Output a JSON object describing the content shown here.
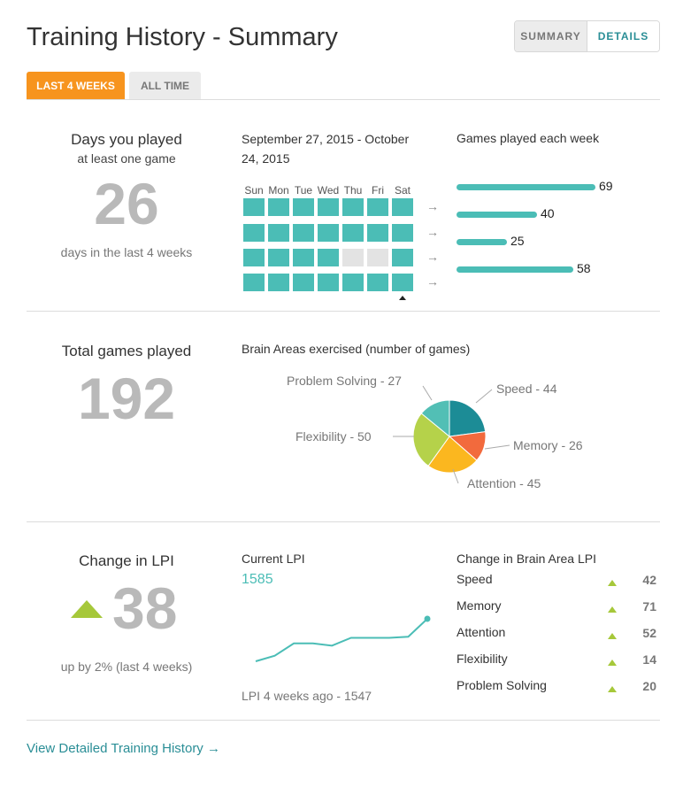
{
  "header": {
    "title": "Training History - Summary",
    "view_toggle": {
      "summary": "SUMMARY",
      "details": "DETAILS"
    }
  },
  "period_tabs": [
    "LAST 4 WEEKS",
    "ALL TIME"
  ],
  "days_played": {
    "heading": "Days you played",
    "subheading": "at least one game",
    "value": "26",
    "caption": "days in the last 4 weeks"
  },
  "calendar": {
    "date_range": "September 27, 2015 - October 24, 2015",
    "date_range_line1": "September 27, 2015 - October",
    "date_range_line2": "24, 2015",
    "day_labels": [
      "Sun",
      "Mon",
      "Tue",
      "Wed",
      "Thu",
      "Fri",
      "Sat"
    ],
    "weeks": [
      [
        1,
        1,
        1,
        1,
        1,
        1,
        1
      ],
      [
        1,
        1,
        1,
        1,
        1,
        1,
        1
      ],
      [
        1,
        1,
        1,
        1,
        0,
        0,
        1
      ],
      [
        1,
        1,
        1,
        1,
        1,
        1,
        1
      ]
    ],
    "arrow_glyph": "→"
  },
  "games_per_week": {
    "heading": "Games played each week",
    "values": [
      69,
      40,
      25,
      58
    ],
    "labels": [
      "69",
      "40",
      "25",
      "58"
    ]
  },
  "total_games": {
    "heading": "Total games played",
    "value": "192"
  },
  "brain_areas": {
    "heading": "Brain Areas exercised (number of games)",
    "slices": [
      {
        "name": "Speed",
        "value": 44,
        "label": "Speed - 44",
        "color": "#1c8c96"
      },
      {
        "name": "Memory",
        "value": 26,
        "label": "Memory - 26",
        "color": "#f26a3d"
      },
      {
        "name": "Attention",
        "value": 45,
        "label": "Attention - 45",
        "color": "#fbb71f"
      },
      {
        "name": "Flexibility",
        "value": 50,
        "label": "Flexibility - 50",
        "color": "#b5d24a"
      },
      {
        "name": "Problem Solving",
        "value": 27,
        "label": "Problem Solving - 27",
        "color": "#52bfb5"
      }
    ]
  },
  "lpi_change": {
    "heading": "Change in LPI",
    "value": "38",
    "caption": "up by 2% (last 4 weeks)"
  },
  "current_lpi": {
    "heading": "Current LPI",
    "value": "1585",
    "previous": "LPI 4 weeks ago - 1547",
    "series": [
      1547,
      1552,
      1563,
      1563,
      1561,
      1568,
      1568,
      1568,
      1569,
      1585
    ]
  },
  "area_lpi": {
    "heading": "Change in Brain Area LPI",
    "rows": [
      {
        "name": "Speed",
        "change": "42"
      },
      {
        "name": "Memory",
        "change": "71"
      },
      {
        "name": "Attention",
        "change": "52"
      },
      {
        "name": "Flexibility",
        "change": "14"
      },
      {
        "name": "Problem Solving",
        "change": "20"
      }
    ],
    "accent": "#a6c83a"
  },
  "footer": {
    "link": "View Detailed Training History →"
  },
  "colors": {
    "accent_teal": "#4bbdb6",
    "link_teal": "#2a8e96",
    "orange": "#f7941e",
    "green": "#a6c83a"
  }
}
